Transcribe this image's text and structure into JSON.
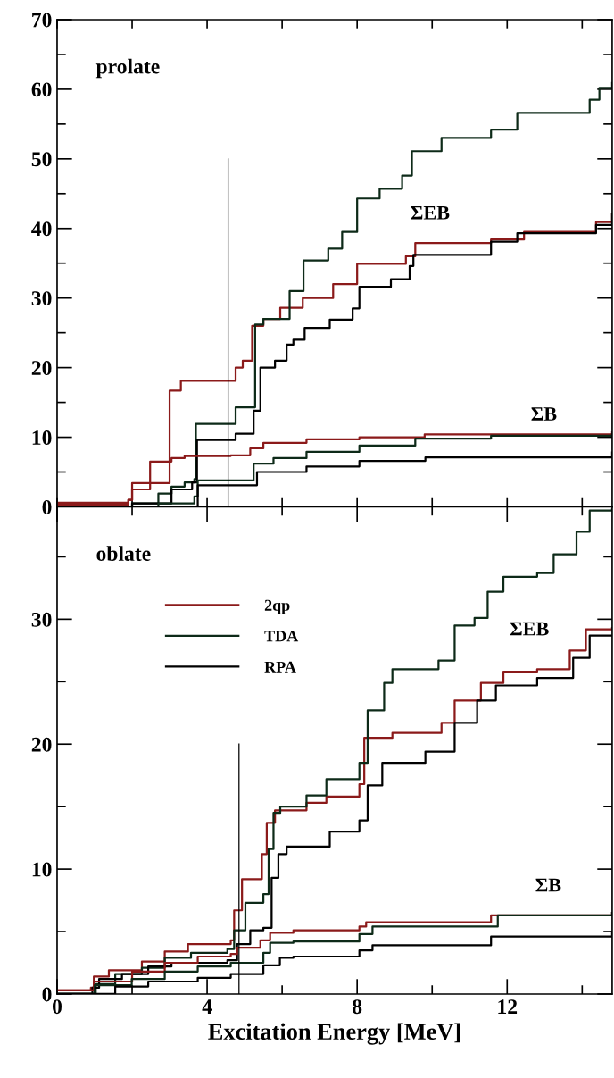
{
  "chart_data": [
    {
      "type": "step",
      "title": "prolate",
      "xlim": [
        0,
        14.8
      ],
      "ylim": [
        0,
        70
      ],
      "xticks": [
        {
          "value": 0,
          "label": null
        },
        {
          "value": 2,
          "label": null
        },
        {
          "value": 4,
          "label": null
        },
        {
          "value": 6,
          "label": null
        },
        {
          "value": 8,
          "label": null
        },
        {
          "value": 10,
          "label": null
        },
        {
          "value": 12,
          "label": null
        },
        {
          "value": 14,
          "label": null
        }
      ],
      "yticks": [
        0,
        {
          "value": 5,
          "label": null
        },
        10,
        {
          "value": 15,
          "label": null
        },
        20,
        {
          "value": 25,
          "label": null
        },
        30,
        {
          "value": 35,
          "label": null
        },
        40,
        {
          "value": 45,
          "label": null
        },
        50,
        {
          "value": 55,
          "label": null
        },
        60,
        {
          "value": 65,
          "label": null
        },
        70
      ],
      "tick_labels": "y",
      "annotations": [
        "ΣEB",
        "ΣB"
      ],
      "series": [
        {
          "color": "#8b1a1a",
          "x": [
            0,
            1.9,
            2.0,
            3.0,
            3.3,
            4.76,
            4.95,
            5.2,
            5.5,
            5.95,
            6.55,
            7.36,
            8.0,
            9.3,
            9.55,
            11.57,
            12.45,
            14.37,
            14.8
          ],
          "values": [
            0.3,
            1,
            3.4,
            16.7,
            18.1,
            20.0,
            21.0,
            26.0,
            27.0,
            28.6,
            30.0,
            32.0,
            34.9,
            36.0,
            37.9,
            38.4,
            39.5,
            40.9,
            42.1
          ]
        },
        {
          "color": "#0d2a18",
          "x": [
            0,
            2.0,
            2.7,
            3.05,
            3.4,
            3.66,
            3.7,
            4.76,
            5.28,
            5.5,
            6.2,
            6.57,
            7.23,
            7.6,
            8.0,
            8.6,
            9.2,
            9.46,
            10.25,
            11.57,
            12.27,
            14.2,
            14.46,
            14.8
          ],
          "values": [
            0,
            0.5,
            1.9,
            2.9,
            3.5,
            4.0,
            11.9,
            14.3,
            26.2,
            27.0,
            31.0,
            35.4,
            37.1,
            39.5,
            44.3,
            45.7,
            47.6,
            51.1,
            53.0,
            54.2,
            56.6,
            58.5,
            60.2,
            60.9
          ]
        },
        {
          "color": "#000000",
          "x": [
            0,
            2.0,
            3.05,
            3.6,
            3.73,
            4.76,
            5.24,
            5.42,
            5.81,
            6.12,
            6.3,
            6.6,
            7.27,
            7.88,
            8.06,
            8.9,
            9.4,
            9.5,
            11.57,
            12.27,
            14.37,
            14.8
          ],
          "values": [
            0,
            0.5,
            2.5,
            3.5,
            9.6,
            10.5,
            13.8,
            20.0,
            21.0,
            23.3,
            24.0,
            25.7,
            26.9,
            28.5,
            31.6,
            32.7,
            34.6,
            36.2,
            38.1,
            39.3,
            40.5,
            42.1
          ]
        },
        {
          "color": "#8b1a1a",
          "x": [
            0,
            1.9,
            2.0,
            2.48,
            3.05,
            3.4,
            4.63,
            5.15,
            5.5,
            6.65,
            8.06,
            9.8,
            14.8
          ],
          "values": [
            0.6,
            1.0,
            2.5,
            6.5,
            7.0,
            7.3,
            7.4,
            8.4,
            9.2,
            9.7,
            10.0,
            10.4,
            10.7
          ]
        },
        {
          "color": "#0d2a18",
          "x": [
            0,
            2.7,
            3.66,
            3.75,
            5.24,
            5.77,
            6.65,
            8.06,
            9.55,
            11.57,
            14.8
          ],
          "values": [
            0,
            0.5,
            1.5,
            3.8,
            6.2,
            7.0,
            7.9,
            8.8,
            9.8,
            10.2,
            10.4
          ]
        },
        {
          "color": "#000000",
          "x": [
            0,
            3.75,
            5.33,
            6.65,
            8.06,
            9.82,
            14.8
          ],
          "values": [
            0,
            3.1,
            5.0,
            5.8,
            6.6,
            7.1,
            7.8
          ]
        },
        {
          "type": "line",
          "color": "#000000",
          "x": [
            4.56,
            4.56
          ],
          "values": [
            0,
            50
          ]
        }
      ]
    },
    {
      "type": "step",
      "title": "oblate",
      "xlabel": "Excitation Energy [MeV]",
      "xlim": [
        0,
        14.8
      ],
      "ylim": [
        0,
        39
      ],
      "xticks": [
        0,
        {
          "value": 2,
          "label": null
        },
        4,
        {
          "value": 6,
          "label": null
        },
        8,
        {
          "value": 10,
          "label": null
        },
        12,
        {
          "value": 14,
          "label": null
        }
      ],
      "yticks": [
        0,
        {
          "value": 5,
          "label": null
        },
        10,
        {
          "value": 15,
          "label": null
        },
        20,
        {
          "value": 25,
          "label": null
        },
        30,
        {
          "value": 35,
          "label": null
        }
      ],
      "legend": "top left",
      "annotations": [
        "ΣEB",
        "ΣB"
      ],
      "series": [
        {
          "name": "2qp",
          "color": "#8b1a1a",
          "x": [
            0,
            0.9,
            0.98,
            1.38,
            2.26,
            2.87,
            3.49,
            4.63,
            4.72,
            4.93,
            5.46,
            5.59,
            5.81,
            6.65,
            7.18,
            8.06,
            8.19,
            8.94,
            10.25,
            10.6,
            11.3,
            11.9,
            12.8,
            13.67,
            14.1,
            14.8
          ],
          "values": [
            0.3,
            0.5,
            1.4,
            1.9,
            2.6,
            3.4,
            4.0,
            4.3,
            6.7,
            9.2,
            11.2,
            13.7,
            14.7,
            15.3,
            15.8,
            16.8,
            20.5,
            20.9,
            21.7,
            23.5,
            24.9,
            25.8,
            26.0,
            27.5,
            29.2,
            29.3
          ]
        },
        {
          "name": "TDA",
          "color": "#0d2a18",
          "x": [
            0,
            0.9,
            1.03,
            1.55,
            2.26,
            2.87,
            3.57,
            4.54,
            4.72,
            5.02,
            5.5,
            5.64,
            5.77,
            5.95,
            6.65,
            7.18,
            8.06,
            8.28,
            8.72,
            8.94,
            10.17,
            10.6,
            11.13,
            11.48,
            11.9,
            12.8,
            13.24,
            13.85,
            14.2,
            14.8
          ],
          "values": [
            0,
            0,
            0.8,
            1.6,
            2.1,
            2.9,
            3.3,
            3.6,
            5.1,
            7.3,
            8.0,
            11.6,
            14.5,
            15.0,
            15.9,
            17.2,
            18.5,
            22.7,
            24.9,
            26.0,
            26.7,
            29.5,
            30.1,
            32.2,
            33.4,
            33.7,
            35.2,
            37.0,
            38.7,
            38.8
          ]
        },
        {
          "name": "RPA",
          "color": "#000000",
          "x": [
            0,
            0.94,
            1.12,
            1.73,
            2.43,
            3.05,
            4.54,
            4.8,
            5.15,
            5.5,
            5.72,
            5.9,
            6.12,
            7.27,
            8.06,
            8.28,
            8.67,
            9.82,
            10.6,
            11.2,
            11.7,
            12.8,
            13.76,
            14.2,
            14.8
          ],
          "values": [
            0,
            0.5,
            1.2,
            1.6,
            2.2,
            2.5,
            2.7,
            4.0,
            5.1,
            5.3,
            9.3,
            11.2,
            11.8,
            13.0,
            13.9,
            16.7,
            18.5,
            19.4,
            21.7,
            23.5,
            24.7,
            25.3,
            26.9,
            28.7,
            28.7
          ]
        },
        {
          "color": "#8b1a1a",
          "x": [
            0,
            0.98,
            2.0,
            2.87,
            3.75,
            4.63,
            4.8,
            5.42,
            5.68,
            6.3,
            8.06,
            8.24,
            11.57,
            14.8
          ],
          "values": [
            0.3,
            1.0,
            1.8,
            2.5,
            3.0,
            3.2,
            3.7,
            4.3,
            4.9,
            5.1,
            5.4,
            5.75,
            6.3,
            6.5
          ]
        },
        {
          "color": "#0d2a18",
          "x": [
            0,
            0.94,
            1.0,
            1.99,
            2.87,
            3.75,
            4.63,
            5.5,
            5.68,
            6.3,
            8.06,
            8.41,
            11.75,
            14.8
          ],
          "values": [
            0,
            0,
            0.7,
            1.2,
            1.8,
            2.2,
            2.5,
            3.3,
            4.1,
            4.2,
            4.8,
            5.4,
            6.3,
            6.5
          ]
        },
        {
          "color": "#000000",
          "x": [
            0,
            0.94,
            1.55,
            2.43,
            3.75,
            4.63,
            5.5,
            5.94,
            6.3,
            8.06,
            8.41,
            11.57,
            14.8
          ],
          "values": [
            0,
            0,
            0.6,
            1.0,
            1.3,
            1.6,
            2.3,
            2.9,
            3.0,
            3.5,
            3.9,
            4.6,
            5.0
          ]
        },
        {
          "type": "line",
          "color": "#000000",
          "x": [
            4.85,
            4.85
          ],
          "values": [
            0,
            20
          ]
        }
      ]
    }
  ]
}
